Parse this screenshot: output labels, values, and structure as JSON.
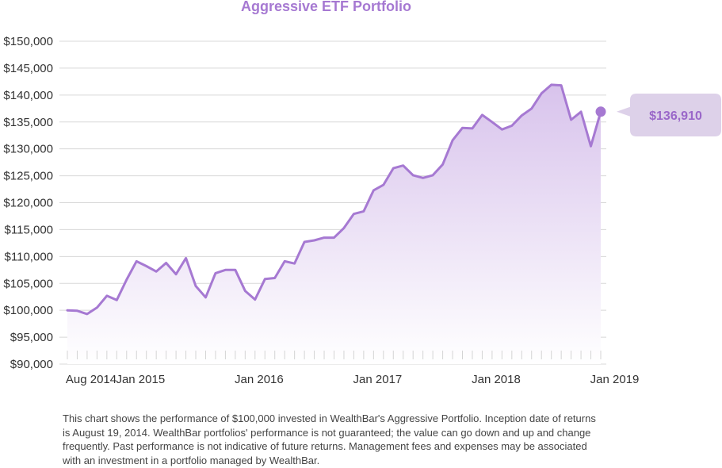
{
  "colors": {
    "accent": "#a679d2",
    "line": "#a679d2",
    "fill_top": "#d8c3ec",
    "fill_bottom": "#ffffff",
    "callout_bg": "#ddd1e9",
    "callout_text": "#9a67c9"
  },
  "chart_data": {
    "type": "area",
    "title": "Aggressive ETF Portfolio",
    "xlabel": "",
    "ylabel": "",
    "ylim": [
      90000,
      150000
    ],
    "ytick_values": [
      90000,
      95000,
      100000,
      105000,
      110000,
      115000,
      120000,
      125000,
      130000,
      135000,
      140000,
      145000,
      150000
    ],
    "ytick_labels": [
      "$90,000",
      "$95,000",
      "$100,000",
      "$105,000",
      "$110,000",
      "$115,000",
      "$120,000",
      "$125,000",
      "$130,000",
      "$135,000",
      "$140,000",
      "$145,000",
      "$150,000"
    ],
    "xtick_labels": [
      {
        "label": "Aug 2014",
        "date": "2014-08"
      },
      {
        "label": "Jan 2015",
        "date": "2015-01"
      },
      {
        "label": "Jan 2016",
        "date": "2016-01"
      },
      {
        "label": "Jan 2017",
        "date": "2017-01"
      },
      {
        "label": "Jan 2018",
        "date": "2018-01"
      },
      {
        "label": "Jan 2019",
        "date": "2019-01"
      }
    ],
    "grid": true,
    "series": [
      {
        "points": [
          [
            "2014-08",
            100000
          ],
          [
            "2014-09",
            99900
          ],
          [
            "2014-10",
            99300
          ],
          [
            "2014-11",
            100500
          ],
          [
            "2014-12",
            102700
          ],
          [
            "2015-01",
            101900
          ],
          [
            "2015-02",
            105700
          ],
          [
            "2015-03",
            109100
          ],
          [
            "2015-04",
            108200
          ],
          [
            "2015-05",
            107200
          ],
          [
            "2015-06",
            108800
          ],
          [
            "2015-07",
            106700
          ],
          [
            "2015-08",
            109700
          ],
          [
            "2015-09",
            104500
          ],
          [
            "2015-10",
            102400
          ],
          [
            "2015-11",
            106900
          ],
          [
            "2015-12",
            107500
          ],
          [
            "2016-01",
            107500
          ],
          [
            "2016-02",
            103600
          ],
          [
            "2016-03",
            102000
          ],
          [
            "2016-04",
            105800
          ],
          [
            "2016-05",
            106000
          ],
          [
            "2016-06",
            109100
          ],
          [
            "2016-07",
            108700
          ],
          [
            "2016-08",
            112700
          ],
          [
            "2016-09",
            113000
          ],
          [
            "2016-10",
            113500
          ],
          [
            "2016-11",
            113500
          ],
          [
            "2016-12",
            115300
          ],
          [
            "2017-01",
            117900
          ],
          [
            "2017-02",
            118400
          ],
          [
            "2017-03",
            122300
          ],
          [
            "2017-04",
            123300
          ],
          [
            "2017-05",
            126400
          ],
          [
            "2017-06",
            126900
          ],
          [
            "2017-07",
            125100
          ],
          [
            "2017-08",
            124600
          ],
          [
            "2017-09",
            125100
          ],
          [
            "2017-10",
            127100
          ],
          [
            "2017-11",
            131600
          ],
          [
            "2017-12",
            133900
          ],
          [
            "2018-01",
            133800
          ],
          [
            "2018-02",
            136300
          ],
          [
            "2018-03",
            135000
          ],
          [
            "2018-04",
            133600
          ],
          [
            "2018-05",
            134300
          ],
          [
            "2018-06",
            136200
          ],
          [
            "2018-07",
            137500
          ],
          [
            "2018-08",
            140300
          ],
          [
            "2018-09",
            141900
          ],
          [
            "2018-10",
            141800
          ],
          [
            "2018-11",
            135400
          ],
          [
            "2018-12",
            136900
          ],
          [
            "2019-01",
            130500
          ],
          [
            "2019-02",
            136910
          ]
        ]
      }
    ],
    "annotation": {
      "label": "$136,910",
      "value": 136910,
      "date": "2019-02"
    }
  },
  "disclaimer": "This chart shows the performance of $100,000 invested in WealthBar's Aggressive Portfolio. Inception date of returns is August 19, 2014. WealthBar portfolios' performance is not guaranteed; the value can go down and up and change frequently. Past performance is not indicative of future returns. Management fees and expenses may be associated with an investment in a portfolio managed by WealthBar."
}
